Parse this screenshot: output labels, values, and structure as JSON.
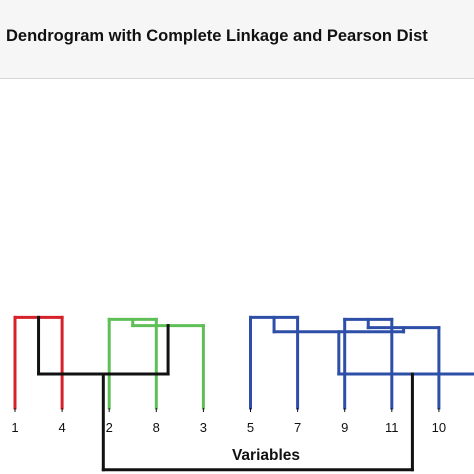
{
  "chart_data": {
    "type": "dendrogram",
    "title": "Dendrogram with Complete Linkage and Pearson Dist",
    "xlabel": "Variables",
    "leaf_order": [
      "1",
      "4",
      "2",
      "8",
      "3",
      "5",
      "7",
      "9",
      "11",
      "10"
    ],
    "similarity_range": [
      0,
      100
    ],
    "merges": [
      {
        "id": "A",
        "left": "1",
        "right": "4",
        "height": 88,
        "cluster": 0
      },
      {
        "id": "B",
        "left": "2",
        "right": "8",
        "height": 86,
        "cluster": 1
      },
      {
        "id": "C",
        "left": "B",
        "right": "3",
        "height": 80,
        "cluster": 1
      },
      {
        "id": "D",
        "left": "5",
        "right": "7",
        "height": 88,
        "cluster": 2
      },
      {
        "id": "E",
        "left": "9",
        "right": "11",
        "height": 86,
        "cluster": 2
      },
      {
        "id": "F",
        "left": "E",
        "right": "10",
        "height": 78,
        "cluster": 2
      },
      {
        "id": "G",
        "left": "D",
        "right": "F",
        "height": 74,
        "cluster": 2
      },
      {
        "id": "H",
        "left": "A",
        "right": "C",
        "height": 33,
        "cluster": null
      },
      {
        "id": "I",
        "left": "G",
        "right": "hidden",
        "height": 33,
        "cluster": 2
      },
      {
        "id": "J",
        "left": "H",
        "right": "I",
        "height": -60,
        "cluster": null
      }
    ],
    "cluster_colors": [
      "#d62128",
      "#5fbf57",
      "#2e4fa8"
    ],
    "link_color": "#111111"
  }
}
